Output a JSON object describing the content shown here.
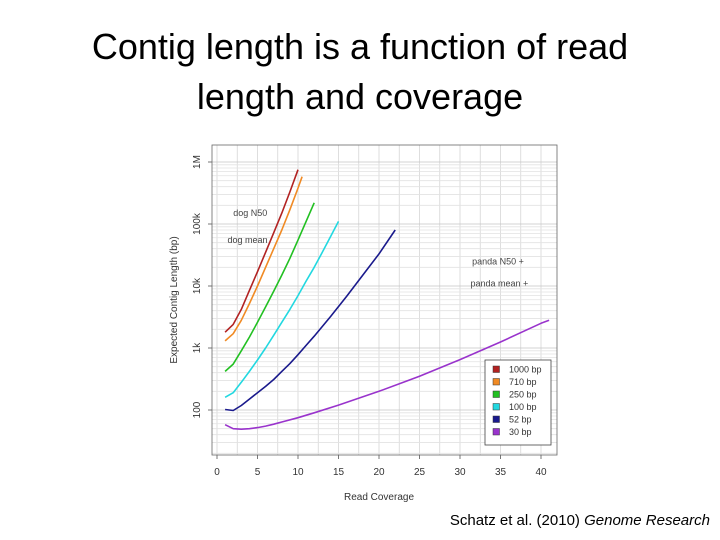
{
  "slide": {
    "title_line1": "Contig length is a function of read",
    "title_line2": "length and coverage",
    "citation_authors": "Schatz et al. (2010) ",
    "citation_journal": "Genome Research"
  },
  "chart_data": {
    "type": "line",
    "xlabel": "Read Coverage",
    "ylabel": "Expected Contig Length (bp)",
    "xlim": [
      0,
      42
    ],
    "ylim": [
      30,
      1000000
    ],
    "y_scale": "log",
    "grid": true,
    "x_ticks": [
      0,
      5,
      10,
      15,
      20,
      25,
      30,
      35,
      40
    ],
    "y_ticks": [
      {
        "value": 100,
        "label": "100"
      },
      {
        "value": 1000,
        "label": "1k"
      },
      {
        "value": 10000,
        "label": "10k"
      },
      {
        "value": 100000,
        "label": "100k"
      },
      {
        "value": 1000000,
        "label": "1M"
      }
    ],
    "legend_position": "bottom-right",
    "series": [
      {
        "name": "1000 bp",
        "color": "#b22222",
        "x": [
          1,
          2,
          3,
          4,
          5,
          6,
          7,
          8,
          9,
          10
        ],
        "y": [
          1800,
          2400,
          4200,
          8500,
          17000,
          35000,
          72000,
          150000,
          330000,
          750000
        ]
      },
      {
        "name": "710 bp",
        "color": "#f08a24",
        "x": [
          1,
          2,
          3,
          4,
          5,
          6,
          7,
          8,
          9,
          10,
          10.5
        ],
        "y": [
          1300,
          1700,
          2800,
          5200,
          10000,
          20000,
          40000,
          80000,
          170000,
          380000,
          580000
        ]
      },
      {
        "name": "250 bp",
        "color": "#22c022",
        "x": [
          1,
          2,
          3,
          4,
          5,
          6,
          7,
          8,
          9,
          10,
          11,
          12
        ],
        "y": [
          420,
          550,
          900,
          1500,
          2600,
          4600,
          8200,
          15000,
          28000,
          55000,
          110000,
          220000
        ]
      },
      {
        "name": "100 bp",
        "color": "#22d8e0",
        "x": [
          1,
          2,
          3,
          4,
          5,
          6,
          7,
          8,
          9,
          10,
          11,
          12,
          13,
          14,
          15
        ],
        "y": [
          160,
          190,
          280,
          420,
          640,
          1000,
          1600,
          2600,
          4200,
          7000,
          12000,
          20000,
          35000,
          62000,
          110000
        ]
      },
      {
        "name": "52 bp",
        "color": "#1a1a8c",
        "x": [
          1,
          2,
          3,
          4,
          5,
          6,
          7,
          8,
          9,
          10,
          11,
          12,
          14,
          16,
          18,
          20,
          22
        ],
        "y": [
          102,
          98,
          118,
          150,
          190,
          240,
          310,
          420,
          560,
          780,
          1100,
          1550,
          3200,
          6800,
          15000,
          33000,
          80000
        ]
      },
      {
        "name": "30 bp",
        "color": "#9933cc",
        "x": [
          1,
          2,
          3,
          4,
          5,
          6,
          7,
          8,
          10,
          12,
          15,
          20,
          25,
          30,
          35,
          40,
          41
        ],
        "y": [
          58,
          50,
          49,
          50,
          52,
          55,
          59,
          64,
          75,
          90,
          120,
          200,
          350,
          650,
          1250,
          2500,
          2800
        ]
      }
    ],
    "annotations": [
      {
        "text": "dog N50",
        "x": 2.0,
        "y": 150000
      },
      {
        "text": "dog mean",
        "x": 1.3,
        "y": 55000
      },
      {
        "text": "panda N50 +",
        "x": 31.5,
        "y": 25000
      },
      {
        "text": "panda mean +",
        "x": 31.3,
        "y": 11000
      }
    ]
  }
}
